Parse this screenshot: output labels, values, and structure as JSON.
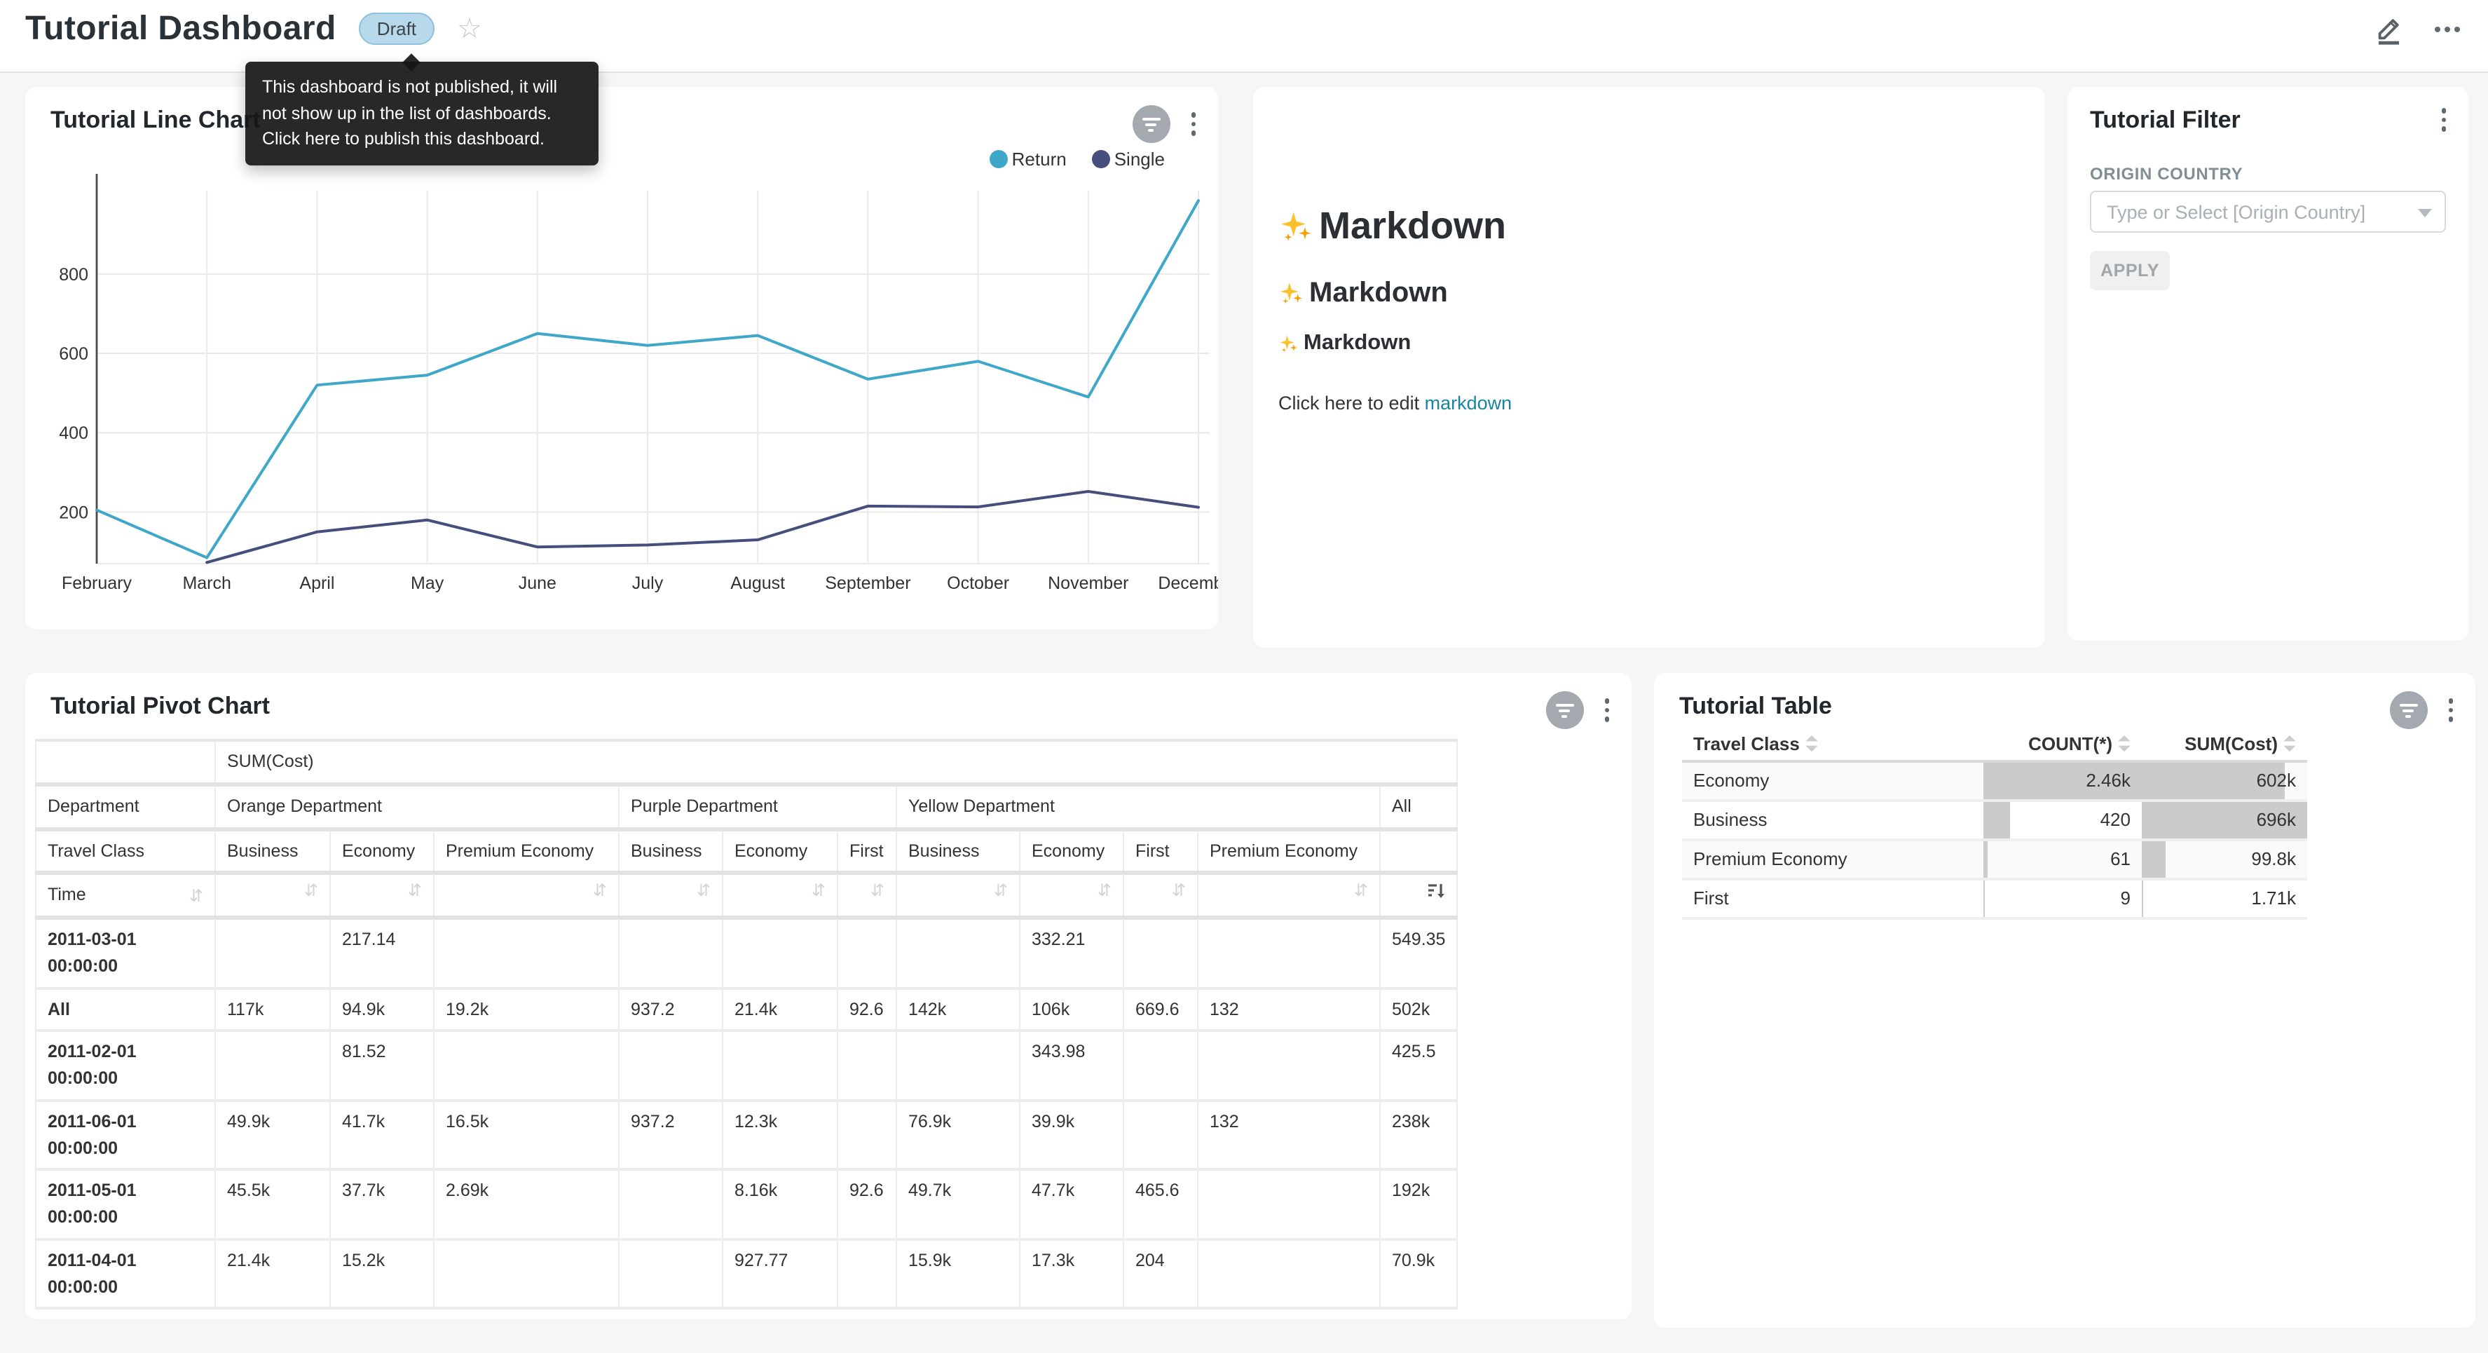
{
  "header": {
    "title": "Tutorial Dashboard",
    "draft_badge": "Draft",
    "tooltip": "This dashboard is not published, it will not show up in the list of dashboards. Click here to publish this dashboard."
  },
  "colors": {
    "cyan": "#3FA7C8",
    "navy": "#454E7C",
    "link": "#1985A0",
    "bar": "#CBCBCB",
    "badge_bg": "#B8D9EC",
    "badge_border": "#8FC0DC",
    "badge_text": "#3C444A",
    "sparkle": "#FBC02D"
  },
  "chart_data": [
    {
      "id": "tutorial-line-chart",
      "type": "line",
      "title": "Tutorial Line Chart",
      "x": [
        "February",
        "March",
        "April",
        "May",
        "June",
        "July",
        "August",
        "September",
        "October",
        "November",
        "December"
      ],
      "series": [
        {
          "name": "Return",
          "color": "#3FA7C8",
          "values": [
            205,
            85,
            520,
            545,
            650,
            620,
            645,
            535,
            580,
            490,
            985
          ]
        },
        {
          "name": "Single",
          "color": "#454E7C",
          "values": [
            null,
            73,
            150,
            180,
            112,
            117,
            130,
            215,
            213,
            252,
            212
          ]
        }
      ],
      "ylim": [
        70,
        1010
      ],
      "yticks": [
        200,
        400,
        600,
        800
      ],
      "grid": true,
      "legend_position": "top-right"
    },
    {
      "id": "tutorial-pivot-chart",
      "type": "table",
      "title": "Tutorial Pivot Chart",
      "metric_label": "SUM(Cost)",
      "corner": {
        "row1": "Department",
        "row2": "Travel Class",
        "row3": "Time"
      },
      "groups": [
        {
          "name": "Orange Department",
          "cols": [
            "Business",
            "Economy",
            "Premium Economy"
          ]
        },
        {
          "name": "Purple Department",
          "cols": [
            "Business",
            "Economy",
            "First"
          ]
        },
        {
          "name": "Yellow Department",
          "cols": [
            "Business",
            "Economy",
            "First",
            "Premium Economy"
          ]
        },
        {
          "name": "All",
          "cols": [
            ""
          ]
        }
      ],
      "sorted_column": "All",
      "sort_direction": "desc",
      "rows": [
        {
          "label": "2011-03-01 00:00:00",
          "values": [
            "",
            "217.14",
            "",
            "",
            "",
            "",
            "",
            "332.21",
            "",
            "",
            "549.35"
          ]
        },
        {
          "label": "All",
          "values": [
            "117k",
            "94.9k",
            "19.2k",
            "937.2",
            "21.4k",
            "92.6",
            "142k",
            "106k",
            "669.6",
            "132",
            "502k"
          ]
        },
        {
          "label": "2011-02-01 00:00:00",
          "values": [
            "",
            "81.52",
            "",
            "",
            "",
            "",
            "",
            "343.98",
            "",
            "",
            "425.5"
          ]
        },
        {
          "label": "2011-06-01 00:00:00",
          "values": [
            "49.9k",
            "41.7k",
            "16.5k",
            "937.2",
            "12.3k",
            "",
            "76.9k",
            "39.9k",
            "",
            "132",
            "238k"
          ]
        },
        {
          "label": "2011-05-01 00:00:00",
          "values": [
            "45.5k",
            "37.7k",
            "2.69k",
            "",
            "8.16k",
            "92.6",
            "49.7k",
            "47.7k",
            "465.6",
            "",
            "192k"
          ]
        },
        {
          "label": "2011-04-01 00:00:00",
          "values": [
            "21.4k",
            "15.2k",
            "",
            "",
            "927.77",
            "",
            "15.9k",
            "17.3k",
            "204",
            "",
            "70.9k"
          ]
        }
      ]
    },
    {
      "id": "tutorial-table",
      "type": "table",
      "title": "Tutorial Table",
      "columns": [
        "Travel Class",
        "COUNT(*)",
        "SUM(Cost)"
      ],
      "rows": [
        {
          "label": "Economy",
          "count": 2460,
          "count_label": "2.46k",
          "sum": 602000,
          "sum_label": "602k"
        },
        {
          "label": "Business",
          "count": 420,
          "count_label": "420",
          "sum": 696000,
          "sum_label": "696k"
        },
        {
          "label": "Premium Economy",
          "count": 61,
          "count_label": "61",
          "sum": 99800,
          "sum_label": "99.8k"
        },
        {
          "label": "First",
          "count": 9,
          "count_label": "9",
          "sum": 1710,
          "sum_label": "1.71k"
        }
      ]
    }
  ],
  "markdown_card": {
    "headings": [
      {
        "level": 1,
        "icon": "sparkles",
        "text": "Markdown"
      },
      {
        "level": 2,
        "icon": "sparkles",
        "text": "Markdown"
      },
      {
        "level": 3,
        "icon": "sparkles",
        "text": "Markdown"
      }
    ],
    "paragraph_prefix": "Click here to edit ",
    "paragraph_link": "markdown"
  },
  "filter_card": {
    "title": "Tutorial Filter",
    "field_label": "ORIGIN COUNTRY",
    "select_placeholder": "Type or Select [Origin Country]",
    "apply_label": "APPLY"
  }
}
